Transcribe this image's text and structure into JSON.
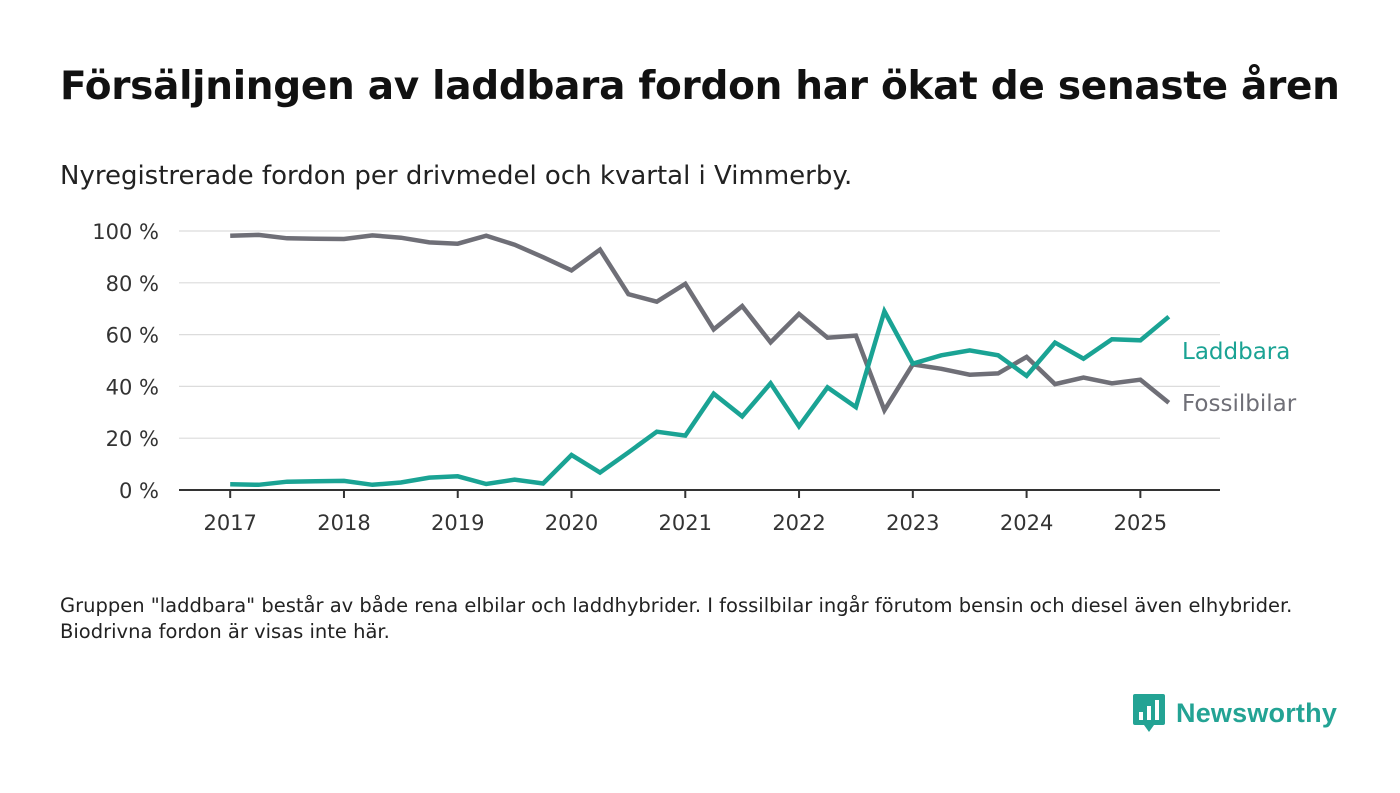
{
  "header": {
    "title": "Försäljningen av laddbara fordon har ökat de senaste åren",
    "subtitle": "Nyregistrerade fordon per drivmedel och kvartal i Vimmerby."
  },
  "footnote": "Gruppen \"laddbara\" består av både rena elbilar och laddhybrider. I fossilbilar ingår förutom bensin och diesel även elhybrider. Biodrivna fordon är visas inte här.",
  "brand": {
    "name": "Newsworthy",
    "icon": "newsworthy-chart-bubble-icon",
    "color": "#23a394"
  },
  "colors": {
    "laddbara": "#1aa394",
    "fossil": "#6f6f77",
    "grid": "#dcdcdc",
    "axis": "#333333"
  },
  "chart_data": {
    "type": "line",
    "x_unit": "year (quarterly observations, 2017 Q1 – 2025 Q2)",
    "x": [
      2017.0,
      2017.25,
      2017.5,
      2017.75,
      2018.0,
      2018.25,
      2018.5,
      2018.75,
      2019.0,
      2019.25,
      2019.5,
      2019.75,
      2020.0,
      2020.25,
      2020.5,
      2020.75,
      2021.0,
      2021.25,
      2021.5,
      2021.75,
      2022.0,
      2022.25,
      2022.5,
      2022.75,
      2023.0,
      2023.25,
      2023.5,
      2023.75,
      2024.0,
      2024.25,
      2024.5,
      2024.75,
      2025.0,
      2025.25
    ],
    "xlim": [
      2016.55,
      2025.7
    ],
    "x_ticks": [
      2017,
      2018,
      2019,
      2020,
      2021,
      2022,
      2023,
      2024,
      2025
    ],
    "x_tick_labels": [
      "2017",
      "2018",
      "2019",
      "2020",
      "2021",
      "2022",
      "2023",
      "2024",
      "2025"
    ],
    "ylim": [
      0,
      100
    ],
    "y_ticks": [
      0,
      20,
      40,
      60,
      80,
      100
    ],
    "y_tick_labels": [
      "0 %",
      "20 %",
      "40 %",
      "60 %",
      "80 %",
      "100 %"
    ],
    "grid": "horizontal",
    "legend": "direct labels at line ends (right)",
    "series": [
      {
        "name": "Laddbara",
        "color": "#1aa394",
        "values": [
          2.2,
          2.0,
          3.2,
          3.4,
          3.5,
          2.0,
          2.9,
          4.8,
          5.3,
          2.3,
          4.0,
          2.5,
          13.5,
          6.7,
          14.5,
          22.5,
          21.0,
          37.2,
          28.4,
          41.2,
          24.6,
          39.6,
          32.0,
          69.0,
          48.8,
          52.0,
          53.9,
          52.0,
          44.1,
          56.9,
          50.7,
          58.2,
          57.8,
          66.9
        ]
      },
      {
        "name": "Fossilbilar",
        "color": "#6f6f77",
        "values": [
          98.2,
          98.5,
          97.2,
          97.0,
          96.9,
          98.3,
          97.4,
          95.6,
          95.1,
          98.2,
          94.7,
          89.9,
          84.8,
          92.8,
          75.6,
          72.7,
          79.6,
          62.0,
          71.0,
          57.0,
          68.0,
          58.8,
          59.6,
          30.8,
          48.5,
          46.8,
          44.5,
          45.0,
          51.4,
          40.9,
          43.4,
          41.2,
          42.6,
          33.7
        ]
      }
    ]
  }
}
